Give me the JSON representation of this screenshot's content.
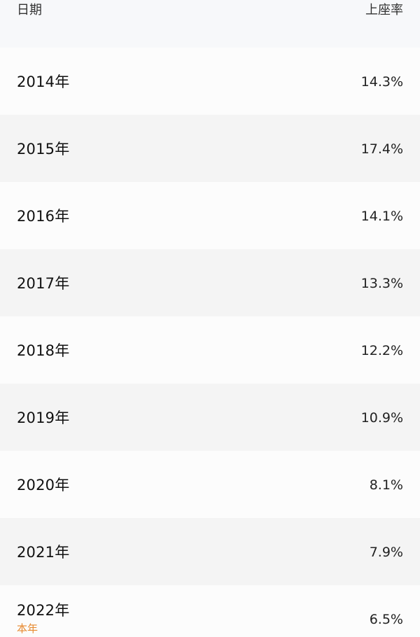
{
  "header": {
    "date_label": "日期",
    "rate_label": "上座率"
  },
  "rows": [
    {
      "year": "2014年",
      "rate": "14.3%"
    },
    {
      "year": "2015年",
      "rate": "17.4%"
    },
    {
      "year": "2016年",
      "rate": "14.1%"
    },
    {
      "year": "2017年",
      "rate": "13.3%"
    },
    {
      "year": "2018年",
      "rate": "12.2%"
    },
    {
      "year": "2019年",
      "rate": "10.9%"
    },
    {
      "year": "2020年",
      "rate": "8.1%"
    },
    {
      "year": "2021年",
      "rate": "7.9%"
    },
    {
      "year": "2022年",
      "rate": "6.5%",
      "tag": "本年"
    }
  ],
  "colors": {
    "current_tag": "#e7892e"
  }
}
